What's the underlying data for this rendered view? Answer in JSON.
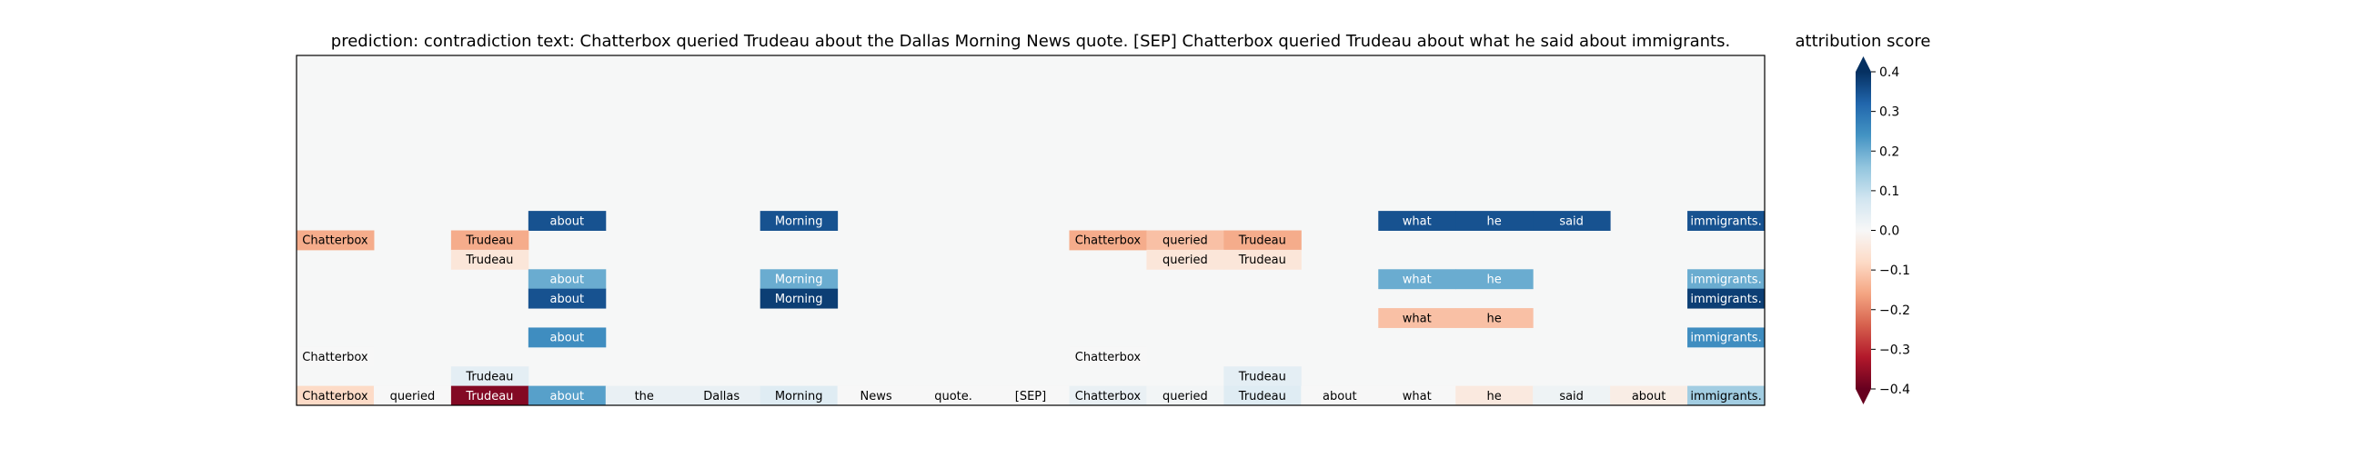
{
  "chart_data": {
    "type": "heatmap",
    "title": "prediction:  contradiction     text:  Chatterbox queried Trudeau about the Dallas Morning News quote. [SEP] Chatterbox queried Trudeau about what he said about immigrants.",
    "tokens": [
      "Chatterbox",
      "queried",
      "Trudeau",
      "about",
      "the",
      "Dallas",
      "Morning",
      "News",
      "quote.",
      "[SEP]",
      "Chatterbox",
      "queried",
      "Trudeau",
      "about",
      "what",
      "he",
      "said",
      "about",
      "immigrants."
    ],
    "rows_from_top": [
      [
        null,
        null,
        null,
        null,
        null,
        null,
        null,
        null,
        null,
        null,
        null,
        null,
        null,
        null,
        null,
        null,
        null,
        null,
        null
      ],
      [
        null,
        null,
        null,
        null,
        null,
        null,
        null,
        null,
        null,
        null,
        null,
        null,
        null,
        null,
        null,
        null,
        null,
        null,
        null
      ],
      [
        null,
        null,
        null,
        null,
        null,
        null,
        null,
        null,
        null,
        null,
        null,
        null,
        null,
        null,
        null,
        null,
        null,
        null,
        null
      ],
      [
        null,
        null,
        null,
        null,
        null,
        null,
        null,
        null,
        null,
        null,
        null,
        null,
        null,
        null,
        null,
        null,
        null,
        null,
        null
      ],
      [
        null,
        null,
        null,
        null,
        null,
        null,
        null,
        null,
        null,
        null,
        null,
        null,
        null,
        null,
        null,
        null,
        null,
        null,
        null
      ],
      [
        null,
        null,
        null,
        null,
        null,
        null,
        null,
        null,
        null,
        null,
        null,
        null,
        null,
        null,
        null,
        null,
        null,
        null,
        null
      ],
      [
        null,
        null,
        null,
        null,
        null,
        null,
        null,
        null,
        null,
        null,
        null,
        null,
        null,
        null,
        null,
        null,
        null,
        null,
        null
      ],
      [
        null,
        null,
        null,
        null,
        null,
        null,
        null,
        null,
        null,
        null,
        null,
        null,
        null,
        null,
        null,
        null,
        null,
        null,
        null
      ],
      [
        null,
        null,
        null,
        0.35,
        null,
        null,
        0.35,
        null,
        null,
        null,
        null,
        null,
        null,
        null,
        0.35,
        0.35,
        0.35,
        null,
        0.35
      ],
      [
        -0.15,
        null,
        -0.15,
        null,
        null,
        null,
        null,
        null,
        null,
        null,
        -0.15,
        -0.12,
        -0.15,
        null,
        null,
        null,
        null,
        null,
        null
      ],
      [
        null,
        null,
        -0.05,
        null,
        null,
        null,
        null,
        null,
        null,
        null,
        null,
        -0.05,
        -0.05,
        null,
        null,
        null,
        null,
        null,
        null
      ],
      [
        null,
        null,
        null,
        0.2,
        null,
        null,
        0.2,
        null,
        null,
        null,
        null,
        null,
        null,
        null,
        0.2,
        0.2,
        null,
        null,
        0.2
      ],
      [
        null,
        null,
        null,
        0.35,
        null,
        null,
        0.38,
        null,
        null,
        null,
        null,
        null,
        null,
        null,
        null,
        null,
        null,
        null,
        0.38
      ],
      [
        null,
        null,
        null,
        null,
        null,
        null,
        null,
        null,
        null,
        null,
        null,
        null,
        null,
        null,
        -0.12,
        -0.12,
        null,
        null,
        null
      ],
      [
        null,
        null,
        null,
        0.25,
        null,
        null,
        null,
        null,
        null,
        null,
        null,
        null,
        null,
        null,
        null,
        null,
        null,
        null,
        0.25
      ],
      [
        0.0,
        null,
        null,
        null,
        null,
        null,
        null,
        null,
        null,
        null,
        0.0,
        null,
        null,
        null,
        null,
        null,
        null,
        null,
        null
      ],
      [
        null,
        null,
        0.04,
        null,
        null,
        null,
        null,
        null,
        null,
        null,
        null,
        null,
        0.04,
        null,
        null,
        null,
        null,
        null,
        null
      ],
      [
        -0.08,
        0.0,
        -0.37,
        0.22,
        0.03,
        0.03,
        0.05,
        0.0,
        0.0,
        0.0,
        0.03,
        0.01,
        0.05,
        0.0,
        0.0,
        -0.04,
        0.02,
        -0.03,
        0.14
      ]
    ],
    "colorbar": {
      "title": "attribution score",
      "min": -0.4,
      "max": 0.4,
      "cmap": "RdBu",
      "ticks": [
        0.4,
        0.3,
        0.2,
        0.1,
        0.0,
        -0.1,
        -0.2,
        -0.3,
        -0.4
      ],
      "tick_labels": [
        "0.4",
        "0.3",
        "0.2",
        "0.1",
        "0.0",
        "−0.1",
        "−0.2",
        "−0.3",
        "−0.4"
      ]
    }
  }
}
